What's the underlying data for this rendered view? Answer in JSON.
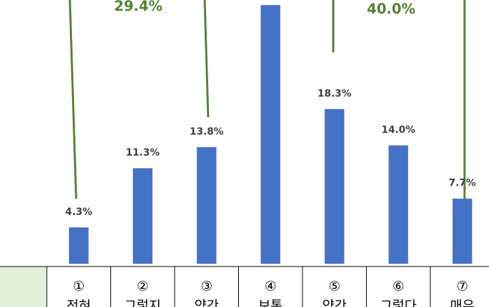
{
  "chart_data": {
    "type": "bar",
    "categories": [
      "①",
      "②",
      "③",
      "④",
      "⑤",
      "⑥",
      "⑦"
    ],
    "category_texts": [
      "전혀",
      "그렇지",
      "약간",
      "보통",
      "약간",
      "그렇다",
      "매우"
    ],
    "values": [
      4.3,
      11.3,
      13.8,
      30.6,
      18.3,
      14.0,
      7.7
    ],
    "value_labels": [
      "4.3%",
      "11.3%",
      "13.8%",
      null,
      "18.3%",
      "14.0%",
      "7.7%"
    ],
    "color": "#4472c4",
    "ylim": [
      0,
      31.2
    ],
    "annotations": [
      {
        "value": 29.4,
        "label": "29.4%"
      },
      {
        "value": 40.0,
        "label": "40.0%"
      }
    ],
    "annotation_color": "#548235"
  }
}
